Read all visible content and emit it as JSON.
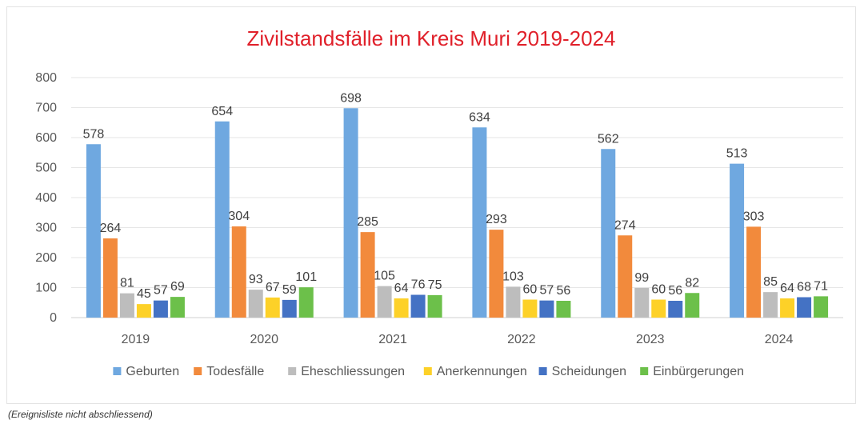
{
  "chart_data": {
    "type": "bar",
    "title": "Zivilstandsfälle im Kreis Muri 2019-2024",
    "categories": [
      "2019",
      "2020",
      "2021",
      "2022",
      "2023",
      "2024"
    ],
    "ylim": [
      0,
      800
    ],
    "yticks": [
      0,
      100,
      200,
      300,
      400,
      500,
      600,
      700,
      800
    ],
    "grid": true,
    "legend_position": "bottom",
    "series": [
      {
        "name": "Geburten",
        "color": "#6fa8e0",
        "values": [
          578,
          654,
          698,
          634,
          562,
          513
        ]
      },
      {
        "name": "Todesfälle",
        "color": "#f28a3c",
        "values": [
          264,
          304,
          285,
          293,
          274,
          303
        ]
      },
      {
        "name": "Eheschliessungen",
        "color": "#bdbdbd",
        "values": [
          81,
          93,
          105,
          103,
          99,
          85
        ]
      },
      {
        "name": "Anerkennungen",
        "color": "#fdd128",
        "values": [
          45,
          67,
          64,
          60,
          60,
          64
        ]
      },
      {
        "name": "Scheidungen",
        "color": "#4472c4",
        "values": [
          57,
          59,
          76,
          57,
          56,
          68
        ]
      },
      {
        "name": "Einbürgerungen",
        "color": "#6cc04a",
        "values": [
          69,
          101,
          75,
          56,
          82,
          71
        ]
      }
    ]
  },
  "footnote": "(Ereignisliste nicht abschliessend)"
}
